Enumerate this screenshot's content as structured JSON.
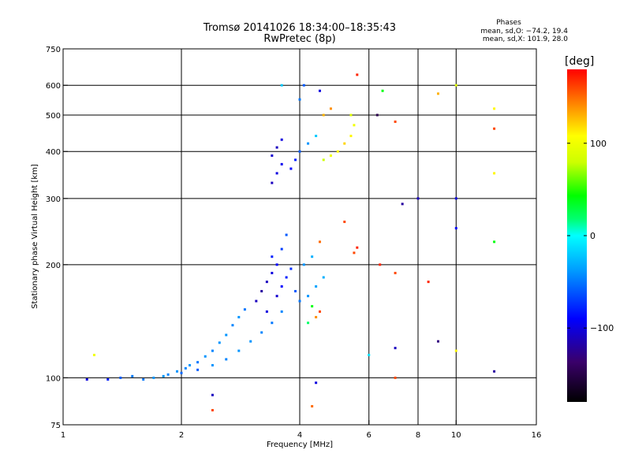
{
  "header": {
    "title": "Tromsø 20141026 18:34:00–18:35:43",
    "subtitle": "RwPretec (8p)"
  },
  "stats": {
    "heading": "Phases",
    "line1": "mean, sd,O: −74.2, 19.4",
    "line2": "mean, sd,X: 101.9, 28.0"
  },
  "colorbar": {
    "label": "[deg]",
    "range": [
      -180,
      180
    ],
    "ticks": [
      {
        "value": 100,
        "label": "100"
      },
      {
        "value": 0,
        "label": "0"
      },
      {
        "value": -100,
        "label": "−100"
      }
    ]
  },
  "chart_data": {
    "type": "scatter",
    "title": "Tromsø 20141026 18:34:00–18:35:43",
    "subtitle": "RwPretec (8p)",
    "xlabel": "Frequency [MHz]",
    "ylabel": "Stationary phase Virtual Height [km]",
    "xscale": "log",
    "yscale": "log",
    "xlim": [
      1,
      16
    ],
    "ylim": [
      75,
      750
    ],
    "xticks": [
      {
        "value": 1,
        "label": "1"
      },
      {
        "value": 2,
        "label": "2"
      },
      {
        "value": 4,
        "label": "4"
      },
      {
        "value": 6,
        "label": "6"
      },
      {
        "value": 8,
        "label": "8"
      },
      {
        "value": 10,
        "label": "10"
      },
      {
        "value": 16,
        "label": "16"
      }
    ],
    "yticks": [
      {
        "value": 75,
        "label": "75"
      },
      {
        "value": 100,
        "label": "100"
      },
      {
        "value": 200,
        "label": "200"
      },
      {
        "value": 300,
        "label": "300"
      },
      {
        "value": 400,
        "label": "400"
      },
      {
        "value": 500,
        "label": "500"
      },
      {
        "value": 600,
        "label": "600"
      },
      {
        "value": 750,
        "label": "750"
      }
    ],
    "grid_x": [
      2,
      4,
      6,
      8,
      10
    ],
    "grid_y": [
      100,
      200,
      300,
      400,
      500,
      600
    ],
    "color_by": "phase_deg",
    "points": [
      {
        "x": 1.15,
        "y": 99,
        "c": -100
      },
      {
        "x": 1.3,
        "y": 99,
        "c": -80
      },
      {
        "x": 1.4,
        "y": 100,
        "c": -60
      },
      {
        "x": 1.5,
        "y": 101,
        "c": -50
      },
      {
        "x": 1.6,
        "y": 99,
        "c": -50
      },
      {
        "x": 1.7,
        "y": 100,
        "c": -40
      },
      {
        "x": 1.8,
        "y": 101,
        "c": -40
      },
      {
        "x": 1.85,
        "y": 102,
        "c": -45
      },
      {
        "x": 1.95,
        "y": 104,
        "c": -40
      },
      {
        "x": 2.0,
        "y": 103,
        "c": -55
      },
      {
        "x": 2.05,
        "y": 106,
        "c": -45
      },
      {
        "x": 2.1,
        "y": 108,
        "c": -40
      },
      {
        "x": 2.2,
        "y": 110,
        "c": -50
      },
      {
        "x": 2.3,
        "y": 114,
        "c": -40
      },
      {
        "x": 2.4,
        "y": 118,
        "c": -45
      },
      {
        "x": 2.5,
        "y": 124,
        "c": -40
      },
      {
        "x": 2.6,
        "y": 130,
        "c": -40
      },
      {
        "x": 2.7,
        "y": 138,
        "c": -45
      },
      {
        "x": 2.8,
        "y": 145,
        "c": -40
      },
      {
        "x": 2.9,
        "y": 152,
        "c": -50
      },
      {
        "x": 2.2,
        "y": 105,
        "c": -60
      },
      {
        "x": 2.4,
        "y": 108,
        "c": -40
      },
      {
        "x": 2.6,
        "y": 112,
        "c": -45
      },
      {
        "x": 2.8,
        "y": 118,
        "c": -40
      },
      {
        "x": 3.0,
        "y": 125,
        "c": -40
      },
      {
        "x": 3.2,
        "y": 132,
        "c": -45
      },
      {
        "x": 3.4,
        "y": 140,
        "c": -50
      },
      {
        "x": 3.6,
        "y": 150,
        "c": -45
      },
      {
        "x": 3.1,
        "y": 160,
        "c": -110
      },
      {
        "x": 3.2,
        "y": 170,
        "c": -120
      },
      {
        "x": 3.3,
        "y": 180,
        "c": -110
      },
      {
        "x": 3.4,
        "y": 190,
        "c": -100
      },
      {
        "x": 3.5,
        "y": 200,
        "c": -90
      },
      {
        "x": 3.3,
        "y": 150,
        "c": -100
      },
      {
        "x": 3.5,
        "y": 165,
        "c": -105
      },
      {
        "x": 3.6,
        "y": 175,
        "c": -90
      },
      {
        "x": 3.7,
        "y": 185,
        "c": -80
      },
      {
        "x": 3.8,
        "y": 195,
        "c": -75
      },
      {
        "x": 3.9,
        "y": 170,
        "c": -60
      },
      {
        "x": 4.0,
        "y": 160,
        "c": -50
      },
      {
        "x": 4.2,
        "y": 165,
        "c": -40
      },
      {
        "x": 4.4,
        "y": 175,
        "c": -35
      },
      {
        "x": 4.6,
        "y": 185,
        "c": -30
      },
      {
        "x": 3.4,
        "y": 210,
        "c": -80
      },
      {
        "x": 3.6,
        "y": 220,
        "c": -70
      },
      {
        "x": 3.7,
        "y": 240,
        "c": -60
      },
      {
        "x": 4.2,
        "y": 140,
        "c": 20
      },
      {
        "x": 4.4,
        "y": 145,
        "c": 140
      },
      {
        "x": 4.5,
        "y": 150,
        "c": 160
      },
      {
        "x": 4.3,
        "y": 155,
        "c": 40
      },
      {
        "x": 4.1,
        "y": 200,
        "c": -40
      },
      {
        "x": 4.3,
        "y": 210,
        "c": -30
      },
      {
        "x": 4.5,
        "y": 230,
        "c": 150
      },
      {
        "x": 5.5,
        "y": 215,
        "c": 160
      },
      {
        "x": 5.6,
        "y": 222,
        "c": 170
      },
      {
        "x": 6.4,
        "y": 200,
        "c": 170
      },
      {
        "x": 7.0,
        "y": 190,
        "c": 160
      },
      {
        "x": 8.5,
        "y": 180,
        "c": 170
      },
      {
        "x": 3.4,
        "y": 330,
        "c": -110
      },
      {
        "x": 3.5,
        "y": 350,
        "c": -100
      },
      {
        "x": 3.6,
        "y": 370,
        "c": -95
      },
      {
        "x": 3.4,
        "y": 390,
        "c": -105
      },
      {
        "x": 3.5,
        "y": 410,
        "c": -110
      },
      {
        "x": 3.6,
        "y": 430,
        "c": -100
      },
      {
        "x": 3.8,
        "y": 360,
        "c": -90
      },
      {
        "x": 3.9,
        "y": 380,
        "c": -80
      },
      {
        "x": 4.0,
        "y": 400,
        "c": -60
      },
      {
        "x": 4.2,
        "y": 420,
        "c": -40
      },
      {
        "x": 4.4,
        "y": 440,
        "c": -20
      },
      {
        "x": 4.6,
        "y": 380,
        "c": 80
      },
      {
        "x": 4.8,
        "y": 390,
        "c": 100
      },
      {
        "x": 5.0,
        "y": 400,
        "c": 110
      },
      {
        "x": 5.2,
        "y": 420,
        "c": 120
      },
      {
        "x": 5.4,
        "y": 440,
        "c": 110
      },
      {
        "x": 5.5,
        "y": 470,
        "c": 100
      },
      {
        "x": 5.4,
        "y": 500,
        "c": 90
      },
      {
        "x": 4.6,
        "y": 500,
        "c": 130
      },
      {
        "x": 4.8,
        "y": 520,
        "c": 140
      },
      {
        "x": 4.0,
        "y": 550,
        "c": -50
      },
      {
        "x": 4.1,
        "y": 600,
        "c": -60
      },
      {
        "x": 3.6,
        "y": 600,
        "c": -20
      },
      {
        "x": 4.5,
        "y": 580,
        "c": -100
      },
      {
        "x": 5.6,
        "y": 640,
        "c": 170
      },
      {
        "x": 6.3,
        "y": 500,
        "c": -150
      },
      {
        "x": 6.5,
        "y": 580,
        "c": 40
      },
      {
        "x": 7.0,
        "y": 480,
        "c": 160
      },
      {
        "x": 9.0,
        "y": 570,
        "c": 130
      },
      {
        "x": 10.0,
        "y": 600,
        "c": 90
      },
      {
        "x": 12.5,
        "y": 520,
        "c": 110
      },
      {
        "x": 12.5,
        "y": 460,
        "c": 160
      },
      {
        "x": 12.5,
        "y": 350,
        "c": 110
      },
      {
        "x": 5.2,
        "y": 260,
        "c": 160
      },
      {
        "x": 7.3,
        "y": 290,
        "c": -120
      },
      {
        "x": 8.0,
        "y": 300,
        "c": -110
      },
      {
        "x": 10.0,
        "y": 300,
        "c": -100
      },
      {
        "x": 10.0,
        "y": 250,
        "c": -90
      },
      {
        "x": 12.5,
        "y": 230,
        "c": 40
      },
      {
        "x": 9.0,
        "y": 125,
        "c": -130
      },
      {
        "x": 7.0,
        "y": 120,
        "c": -110
      },
      {
        "x": 6.0,
        "y": 115,
        "c": -10
      },
      {
        "x": 10.0,
        "y": 118,
        "c": 110
      },
      {
        "x": 7.0,
        "y": 100,
        "c": 160
      },
      {
        "x": 12.5,
        "y": 104,
        "c": -120
      },
      {
        "x": 2.4,
        "y": 90,
        "c": -110
      },
      {
        "x": 2.4,
        "y": 82,
        "c": 160
      },
      {
        "x": 4.3,
        "y": 84,
        "c": 150
      },
      {
        "x": 4.4,
        "y": 97,
        "c": -100
      },
      {
        "x": 1.2,
        "y": 115,
        "c": 100
      }
    ]
  }
}
